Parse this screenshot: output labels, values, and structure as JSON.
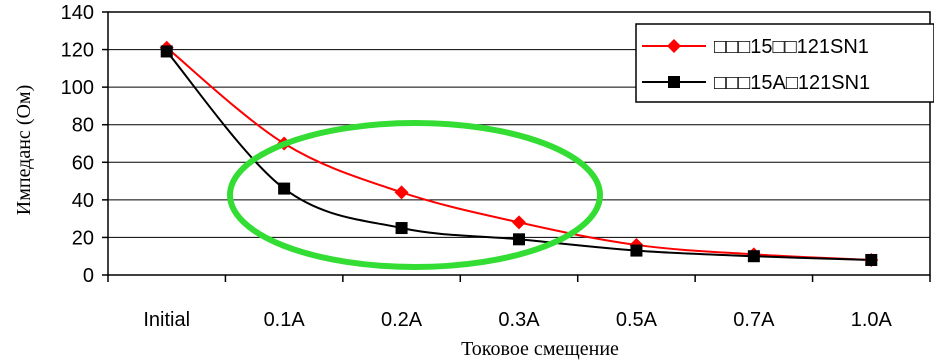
{
  "chart_data": {
    "type": "line",
    "xlabel": "Токовое смещение",
    "ylabel": "Импеданс (Ом)",
    "categories": [
      "Initial",
      "0.1A",
      "0.2A",
      "0.3A",
      "0.5A",
      "0.7A",
      "1.0A"
    ],
    "ylim": [
      0,
      140
    ],
    "yticks": [
      0,
      20,
      40,
      60,
      80,
      100,
      120,
      140
    ],
    "grid": true,
    "legend_position": "top-right",
    "series": [
      {
        "name": "□□□15□□121SN1",
        "color": "#ff0000",
        "marker": "diamond",
        "values": [
          121,
          70,
          44,
          28,
          16,
          11,
          8
        ]
      },
      {
        "name": "□□□15A□121SN1",
        "color": "#000000",
        "marker": "square",
        "values": [
          119,
          46,
          25,
          19,
          13,
          10,
          8
        ]
      }
    ],
    "annotation": {
      "shape": "ellipse",
      "color": "#33dd33"
    }
  }
}
